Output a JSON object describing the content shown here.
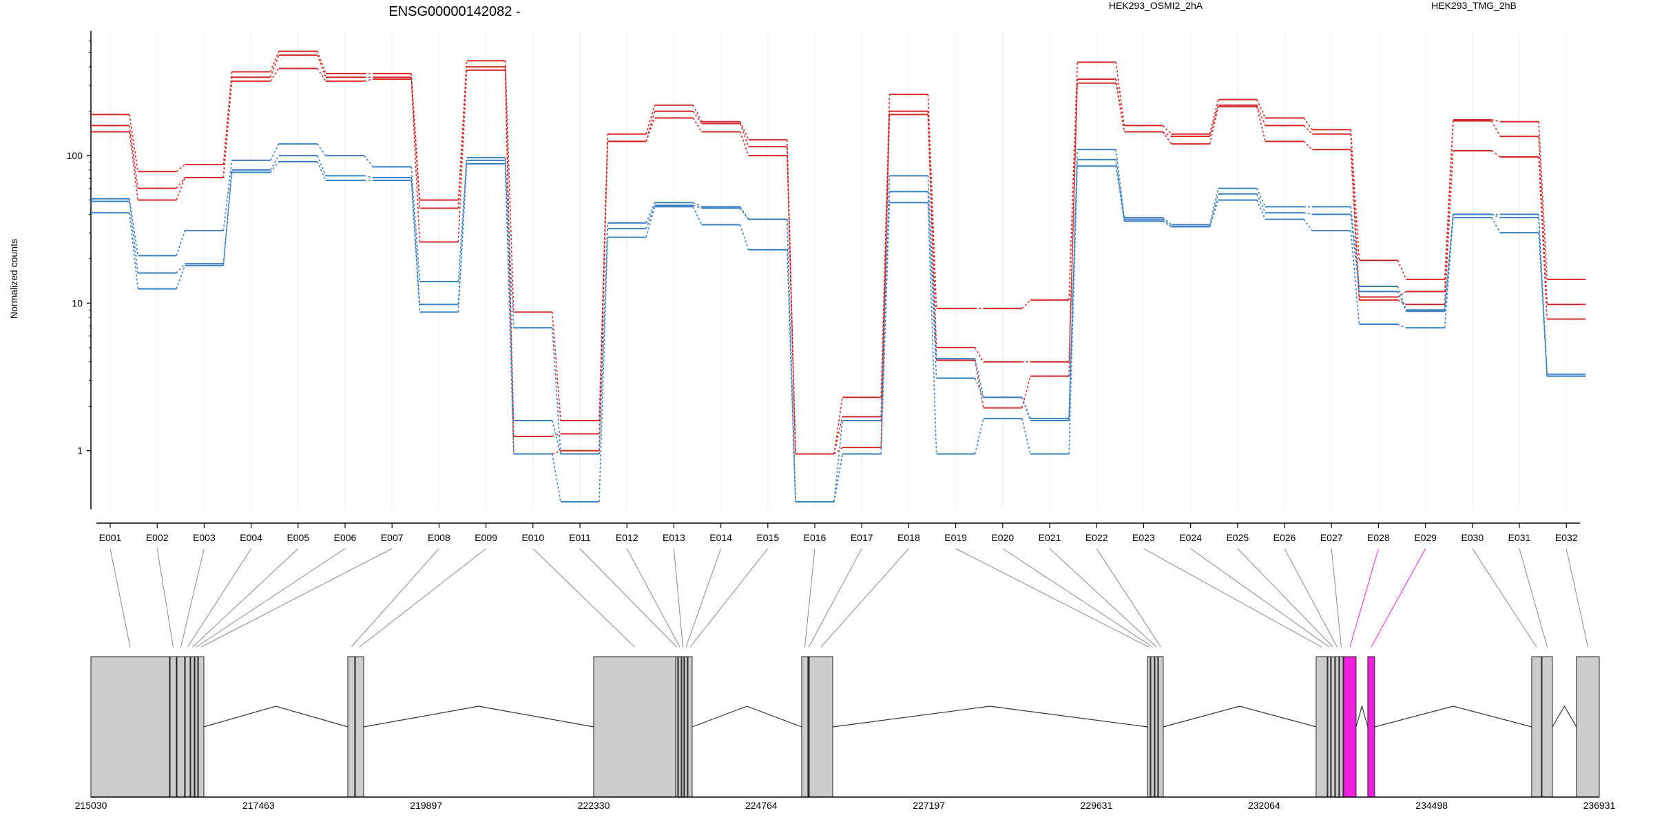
{
  "chart_data": {
    "type": "line",
    "title": "ENSG00000142082 -",
    "ylabel": "Normalized counts",
    "y_scale": "log",
    "ylim": [
      0.4,
      700
    ],
    "y_ticks": [
      {
        "label": "1",
        "value": 1
      },
      {
        "label": "10",
        "value": 10
      },
      {
        "label": "100",
        "value": 100
      }
    ],
    "exons": [
      "E001",
      "E002",
      "E003",
      "E004",
      "E005",
      "E006",
      "E007",
      "E008",
      "E009",
      "E010",
      "E011",
      "E012",
      "E013",
      "E014",
      "E015",
      "E016",
      "E017",
      "E018",
      "E019",
      "E020",
      "E021",
      "E022",
      "E023",
      "E024",
      "E025",
      "E026",
      "E027",
      "E028",
      "E029",
      "E030",
      "E031",
      "E032"
    ],
    "groups": [
      {
        "name": "HEK293_OSMI2_2hA",
        "color": "#d62728"
      },
      {
        "name": "HEK293_TMG_2hB",
        "color": "#3a7fc1"
      }
    ],
    "series": [
      {
        "group": 0,
        "values": [
          190,
          78,
          87,
          370,
          510,
          360,
          360,
          50,
          440,
          8.7,
          1.6,
          140,
          220,
          170,
          128,
          0.95,
          2.3,
          260,
          9.2,
          9.2,
          10.5,
          430,
          160,
          140,
          240,
          180,
          150,
          19.5,
          14.5,
          175,
          170,
          14.5
        ]
      },
      {
        "group": 0,
        "values": [
          160,
          60,
          71,
          340,
          480,
          340,
          340,
          44,
          400,
          1.25,
          1.3,
          125,
          200,
          165,
          115,
          0.95,
          1.7,
          200,
          5.0,
          4.0,
          4.0,
          330,
          145,
          135,
          220,
          160,
          140,
          11.0,
          12.0,
          172,
          135,
          9.8
        ]
      },
      {
        "group": 0,
        "values": [
          145,
          50,
          71,
          320,
          390,
          320,
          330,
          26,
          380,
          0.95,
          1.0,
          125,
          180,
          145,
          100,
          0.95,
          1.05,
          190,
          4.1,
          1.95,
          3.2,
          310,
          145,
          120,
          215,
          125,
          110,
          10.5,
          9.8,
          108,
          98,
          7.8
        ]
      },
      {
        "group": 1,
        "values": [
          51,
          21,
          31,
          93,
          120,
          100,
          84,
          14,
          97,
          6.8,
          0.95,
          35,
          48,
          45,
          37,
          0.45,
          1.6,
          73,
          4.2,
          2.3,
          1.65,
          110,
          38,
          34,
          60,
          45,
          45,
          13,
          9.0,
          40,
          40,
          3.3
        ]
      },
      {
        "group": 1,
        "values": [
          49,
          16,
          18.5,
          80,
          100,
          73,
          71,
          9.8,
          93,
          1.6,
          0.95,
          32,
          46,
          44,
          37,
          0.45,
          0.95,
          57,
          3.1,
          2.3,
          1.6,
          94,
          37,
          33,
          55,
          41,
          40,
          12,
          8.8,
          40,
          38,
          3.2
        ]
      },
      {
        "group": 1,
        "values": [
          41,
          12.5,
          18,
          77,
          91,
          68,
          68,
          8.7,
          88,
          0.95,
          0.45,
          28,
          45,
          34,
          23,
          0.45,
          0.95,
          48,
          0.95,
          1.65,
          0.95,
          85,
          36,
          33,
          50,
          37,
          31,
          7.2,
          6.8,
          38,
          30,
          3.2
        ]
      }
    ],
    "genomic_axis": {
      "start": 215030,
      "end": 236931,
      "tick_labels": [
        "215030",
        "217463",
        "219897",
        "222330",
        "224764",
        "227197",
        "229631",
        "232064",
        "234498",
        "236931"
      ]
    },
    "exon_starts": [
      215030,
      216180,
      216280,
      216400,
      216480,
      216540,
      216590,
      218760,
      218870,
      222330,
      223520,
      223560,
      223610,
      223650,
      223700,
      225350,
      225450,
      225460,
      230370,
      230420,
      230480,
      230530,
      232820,
      232990,
      233040,
      233100,
      233160,
      233220,
      233570,
      235950,
      236100,
      236600
    ],
    "exon_ends": [
      216170,
      216270,
      216390,
      216470,
      216530,
      216580,
      216670,
      218860,
      218990,
      223520,
      223550,
      223600,
      223640,
      223690,
      223760,
      225440,
      225455,
      225800,
      230410,
      230470,
      230520,
      230600,
      232980,
      233030,
      233090,
      233150,
      233210,
      233400,
      233670,
      236090,
      236250,
      236931
    ],
    "highlighted_exons": [
      "E028",
      "E029"
    ],
    "highlight_color": "#ee22dd"
  }
}
